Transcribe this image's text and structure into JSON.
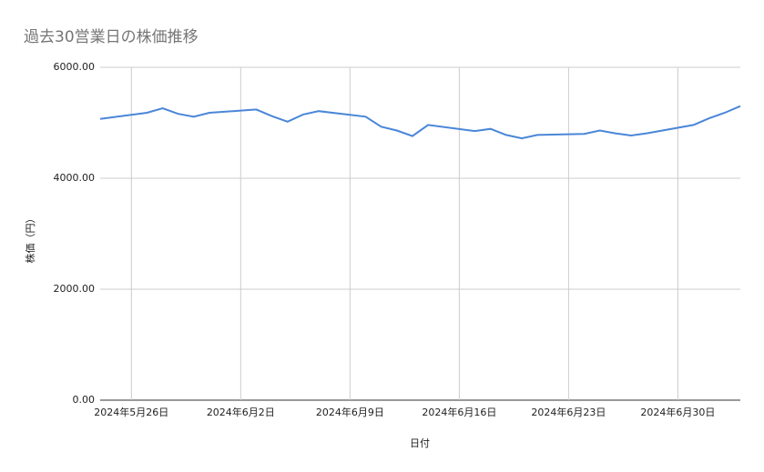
{
  "chart_data": {
    "type": "line",
    "title": "過去30営業日の株価推移",
    "x_label": "日付",
    "y_label": "株価（円）",
    "x": [
      "2024-05-24",
      "2024-05-27",
      "2024-05-28",
      "2024-05-29",
      "2024-05-30",
      "2024-05-31",
      "2024-06-03",
      "2024-06-04",
      "2024-06-05",
      "2024-06-06",
      "2024-06-07",
      "2024-06-10",
      "2024-06-11",
      "2024-06-12",
      "2024-06-13",
      "2024-06-14",
      "2024-06-17",
      "2024-06-18",
      "2024-06-19",
      "2024-06-20",
      "2024-06-21",
      "2024-06-24",
      "2024-06-25",
      "2024-06-26",
      "2024-06-27",
      "2024-06-28",
      "2024-07-01",
      "2024-07-02",
      "2024-07-03",
      "2024-07-04"
    ],
    "series": [
      {
        "color": "#4a86d8",
        "values": [
          5070,
          5180,
          5260,
          5160,
          5110,
          5180,
          5240,
          5120,
          5020,
          5150,
          5210,
          5110,
          4930,
          4860,
          4760,
          4960,
          4850,
          4890,
          4780,
          4720,
          4780,
          4800,
          4860,
          4810,
          4770,
          4810,
          4960,
          5080,
          5180,
          5300
        ]
      }
    ],
    "xlim": [
      "2024-05-24",
      "2024-07-04"
    ],
    "xticks": [
      {
        "value": "2024-05-26",
        "label": "2024年5月26日"
      },
      {
        "value": "2024-06-02",
        "label": "2024年6月2日"
      },
      {
        "value": "2024-06-09",
        "label": "2024年6月9日"
      },
      {
        "value": "2024-06-16",
        "label": "2024年6月16日"
      },
      {
        "value": "2024-06-23",
        "label": "2024年6月23日"
      },
      {
        "value": "2024-06-30",
        "label": "2024年6月30日"
      }
    ],
    "ylim": [
      0,
      6000
    ],
    "yticks": [
      {
        "value": 0,
        "label": "0.00"
      },
      {
        "value": 2000,
        "label": "2000.00"
      },
      {
        "value": 4000,
        "label": "4000.00"
      },
      {
        "value": 6000,
        "label": "6000.00"
      }
    ],
    "grid": true
  }
}
